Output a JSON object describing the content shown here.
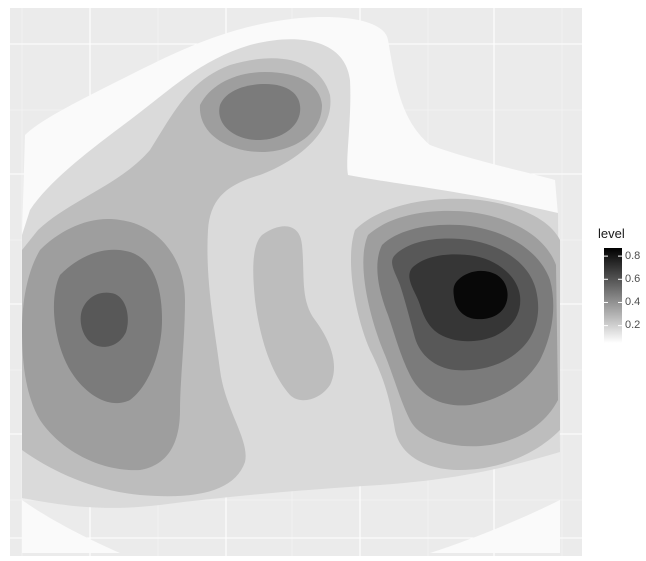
{
  "chart_data": {
    "type": "filled-contour",
    "title": "",
    "xlabel": "",
    "ylabel": "",
    "grid": true,
    "axis_ticks_labels": false,
    "legend": {
      "title": "level",
      "placement": "right",
      "ticks": [
        "0.8",
        "0.6",
        "0.4",
        "0.2"
      ],
      "tick_values": [
        0.8,
        0.6,
        0.4,
        0.2
      ],
      "range": [
        0.05,
        0.87
      ]
    },
    "levels": [
      0.1,
      0.2,
      0.3,
      0.4,
      0.5,
      0.6,
      0.7,
      0.8
    ],
    "colors": {
      "panel_background": "#ebebeb",
      "grid_major": "#ffffff",
      "grid_minor": "#f5f5f5",
      "level_0_1": "#fafafa",
      "level_0_2": "#dadada",
      "level_0_3": "#bdbdbd",
      "level_0_4": "#9e9e9e",
      "level_0_5": "#7b7b7b",
      "level_0_6": "#585858",
      "level_0_7": "#363636",
      "level_0_8": "#080808",
      "legend_high": "#000000",
      "legend_low": "#ffffff"
    }
  }
}
